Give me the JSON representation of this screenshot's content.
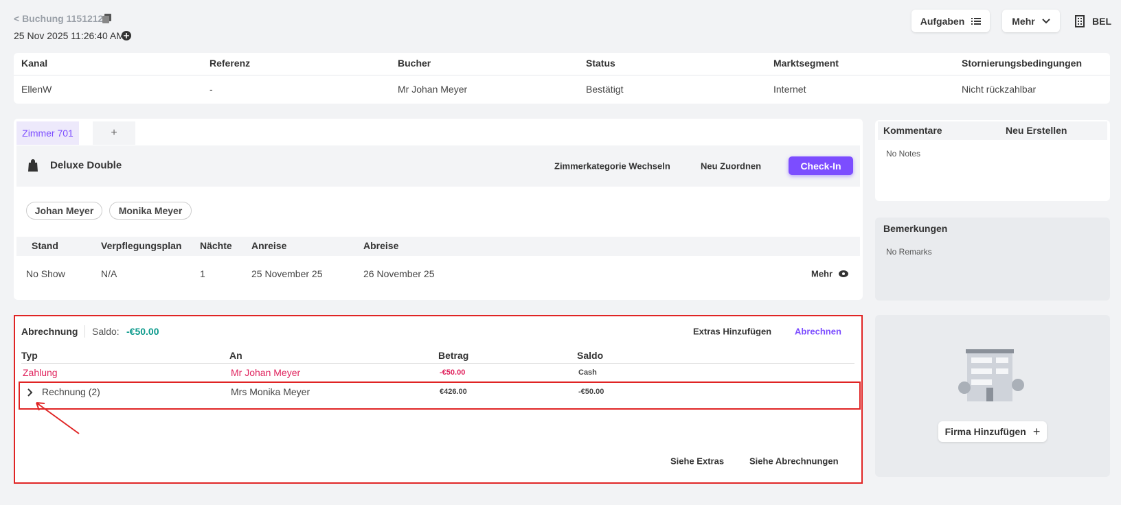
{
  "header": {
    "back_link": "< Buchung 1151212",
    "timestamp": "25 Nov 2025 11:26:40 AM",
    "buttons": [
      "Aufgaben",
      "Mehr"
    ],
    "hotel": "BEL"
  },
  "booking": {
    "headers": [
      "Kanal",
      "Referenz",
      "Bucher",
      "Status",
      "Marktsegment",
      "Stornierungsbedingungen"
    ],
    "row": [
      "EllenW",
      "-",
      "Mr Johan Meyer",
      "Bestätigt",
      "Internet",
      "Nicht rückzahlbar"
    ]
  },
  "room": {
    "tab": "Zimmer 701",
    "add_tab": "+",
    "category": "Deluxe Double",
    "actions": [
      "Zimmerkategorie Wechseln",
      "Neu Zuordnen"
    ],
    "checkin": "Check-In",
    "guests": [
      "Johan Meyer",
      "Monika Meyer"
    ],
    "headers": [
      "Stand",
      "Verpflegungsplan",
      "Nächte",
      "Anreise",
      "Abreise"
    ],
    "row": [
      "No Show",
      "N/A",
      "1",
      "25 November 25",
      "26 November 25"
    ],
    "more": "Mehr"
  },
  "billing": {
    "title": "Abrechnung",
    "saldo_label": "Saldo:",
    "saldo_value": "-€50.00",
    "extras": "Extras Hinzufügen",
    "settle": "Abrechnen",
    "headers": [
      "Typ",
      "An",
      "Betrag",
      "Saldo"
    ],
    "rows": [
      [
        "Zahlung",
        "Mr Johan Meyer",
        "-€50.00",
        "Cash"
      ],
      [
        "Rechnung (2)",
        "Mrs Monika Meyer",
        "€426.00",
        "-€50.00"
      ]
    ],
    "footer_links": [
      "Siehe Extras",
      "Siehe Abrechnungen"
    ]
  },
  "comments": {
    "title": "Kommentare",
    "new": "Neu Erstellen",
    "empty": "No Notes"
  },
  "remarks": {
    "title": "Bemerkungen",
    "empty": "No Remarks"
  },
  "company": {
    "button": "Firma Hinzufügen"
  }
}
